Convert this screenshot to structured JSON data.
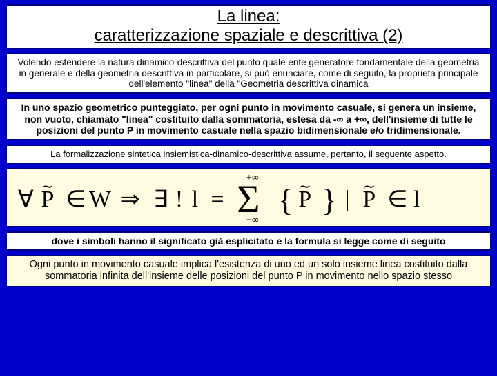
{
  "title": {
    "line1": "La linea:",
    "line2": "caratterizzazione spaziale e descrittiva (2)"
  },
  "para1": "Volendo estendere la natura dinamico-descrittiva del punto quale ente generatore fondamentale della geometria in generale e della geometria descrittiva in particolare, si può enunciare, come di seguito, la proprietà principale dell'elemento \"linea\" della \"Geometria descrittiva dinamica",
  "para2": "In uno spazio geometrico punteggiato, per ogni punto in movimento casuale, si genera un insieme, non vuoto, chiamato \"linea\" costituito dalla sommatoria, estesa da -∞ a +∞, dell'insieme di tutte le posizioni del punto P in movimento casuale nella spazio bidimensionale e/o tridimensionale.",
  "para3": "La formalizzazione sintetica insiemistica-dinamico-descrittiva assume, pertanto, il seguente aspetto.",
  "para4": "dove i simboli hanno il significato già esplicitato e la formula si legge come di seguito",
  "para5": "Ogni punto in movimento casuale implica l'esistenza di uno ed un solo insieme linea costituito dalla sommatoria infinita dell'insieme delle posizioni del punto P in movimento nello spazio stesso",
  "formula": {
    "type": "math-expression",
    "latex_like": "∀ P̃ ∈ W ⇒ ∃ ! l = Σ_{-∞}^{+∞} { P̃ } | P̃ ∈ l",
    "font_family": "serif",
    "font_size_main": 34,
    "font_size_limits": 16,
    "text_color": "#000000",
    "background_color": "#fefbe0"
  },
  "colors": {
    "page_bg": "#0000cc",
    "box_bg": "#ffffff",
    "highlight_bg": "#fefbe0",
    "border": "#000080",
    "text": "#000000"
  }
}
